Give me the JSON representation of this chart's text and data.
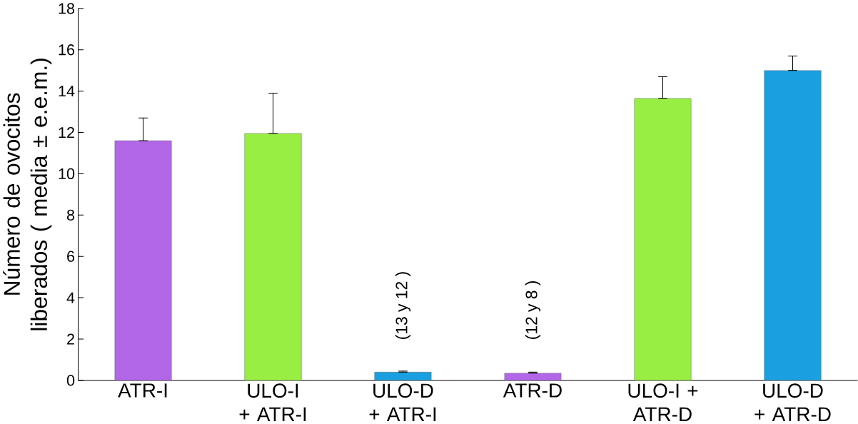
{
  "chart_data": {
    "type": "bar",
    "ylabel": "Número de ovocitos liberados ( media ± e.e.m.)",
    "categories": [
      "ATR-I",
      "ULO-I + ATR-I",
      "ULO-D + ATR-I",
      "ATR-D",
      "ULO-I + ATR-D",
      "ULO-D + ATR-D"
    ],
    "values": [
      11.6,
      11.95,
      0.4,
      0.35,
      13.65,
      15.0
    ],
    "errors": [
      [
        11.6,
        12.7
      ],
      [
        11.95,
        13.9
      ],
      [
        0.4,
        0.45
      ],
      [
        0.35,
        0.4
      ],
      [
        13.65,
        14.7
      ],
      [
        15.0,
        15.7
      ]
    ],
    "colors": [
      "#b266e8",
      "#99ee44",
      "#1aa0e0",
      "#b266e8",
      "#99ee44",
      "#1aa0e0"
    ],
    "ylim": [
      0,
      18
    ],
    "yticks": [
      0,
      2,
      4,
      6,
      8,
      10,
      12,
      14,
      16,
      18
    ],
    "annotations": [
      "(13 y 12 )",
      "(12 y 8 )"
    ],
    "grid": false
  }
}
